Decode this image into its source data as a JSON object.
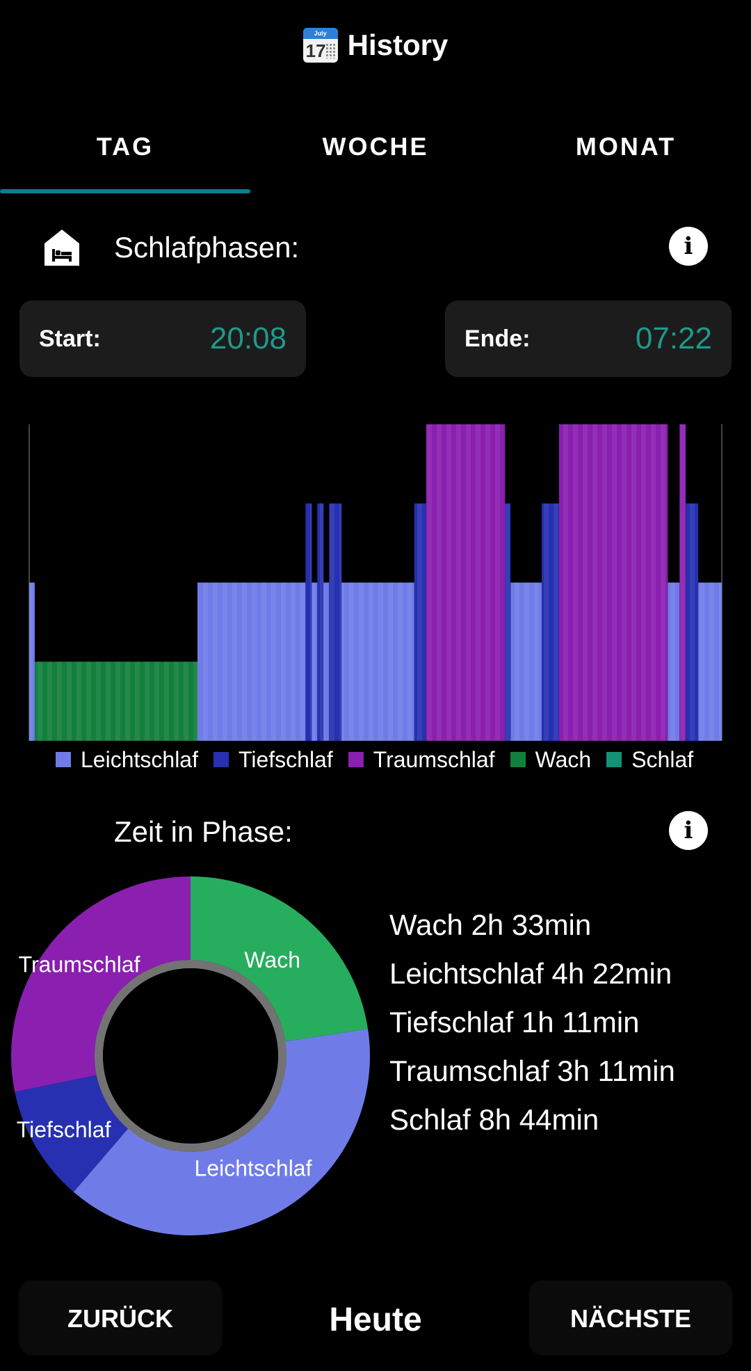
{
  "header": {
    "title": "History",
    "icon": "calendar-icon",
    "calendar_month": "July",
    "calendar_day": "17"
  },
  "tabs": [
    {
      "label": "TAG",
      "active": true
    },
    {
      "label": "WOCHE",
      "active": false
    },
    {
      "label": "MONAT",
      "active": false
    }
  ],
  "phases_section": {
    "title": "Schlafphasen:",
    "icon": "bed-icon",
    "info_icon": "info-icon"
  },
  "start": {
    "label": "Start:",
    "value": "20:08"
  },
  "end": {
    "label": "Ende:",
    "value": "07:22"
  },
  "colors": {
    "leicht": "#6f7ce8",
    "tief": "#2630b0",
    "traum": "#8a1fb0",
    "wach": "#137f3d",
    "schlaf": "#139275",
    "accent": "#1e9a8c",
    "tab_indicator": "#0e7d92"
  },
  "legend": [
    "Leichtschlaf",
    "Tiefschlaf",
    "Traumschlaf",
    "Wach",
    "Schlaf"
  ],
  "chart_data": [
    {
      "type": "bar",
      "levels": {
        "Traumschlaf": 4,
        "Tiefschlaf": 3,
        "Leichtschlaf": 2,
        "Wach": 1
      },
      "segments": [
        {
          "phase": "Leichtschlaf",
          "start": 0.0,
          "end": 0.008
        },
        {
          "phase": "Wach",
          "start": 0.008,
          "end": 0.243
        },
        {
          "phase": "Leichtschlaf",
          "start": 0.243,
          "end": 0.399
        },
        {
          "phase": "Tiefschlaf",
          "start": 0.399,
          "end": 0.408
        },
        {
          "phase": "Leichtschlaf",
          "start": 0.408,
          "end": 0.416
        },
        {
          "phase": "Tiefschlaf",
          "start": 0.416,
          "end": 0.425
        },
        {
          "phase": "Leichtschlaf",
          "start": 0.425,
          "end": 0.433
        },
        {
          "phase": "Tiefschlaf",
          "start": 0.433,
          "end": 0.451
        },
        {
          "phase": "Leichtschlaf",
          "start": 0.451,
          "end": 0.556
        },
        {
          "phase": "Tiefschlaf",
          "start": 0.556,
          "end": 0.573
        },
        {
          "phase": "Traumschlaf",
          "start": 0.573,
          "end": 0.687
        },
        {
          "phase": "Tiefschlaf",
          "start": 0.687,
          "end": 0.695
        },
        {
          "phase": "Leichtschlaf",
          "start": 0.695,
          "end": 0.74
        },
        {
          "phase": "Tiefschlaf",
          "start": 0.74,
          "end": 0.765
        },
        {
          "phase": "Traumschlaf",
          "start": 0.765,
          "end": 0.922
        },
        {
          "phase": "Leichtschlaf",
          "start": 0.922,
          "end": 0.939
        },
        {
          "phase": "Traumschlaf",
          "start": 0.939,
          "end": 0.948
        },
        {
          "phase": "Tiefschlaf",
          "start": 0.948,
          "end": 0.966
        },
        {
          "phase": "Leichtschlaf",
          "start": 0.966,
          "end": 1.0
        }
      ]
    },
    {
      "type": "pie",
      "title": "Zeit in Phase:",
      "slices": [
        {
          "label": "Wach",
          "value": 153
        },
        {
          "label": "Leichtschlaf",
          "value": 262
        },
        {
          "label": "Tiefschlaf",
          "value": 71
        },
        {
          "label": "Traumschlaf",
          "value": 191
        }
      ]
    }
  ],
  "time_section": {
    "title": "Zeit in Phase:",
    "info_icon": "info-icon"
  },
  "stats": [
    "Wach 2h 33min",
    "Leichtschlaf 4h 22min",
    "Tiefschlaf 1h 11min",
    "Traumschlaf 3h 11min",
    "Schlaf 8h 44min"
  ],
  "footer": {
    "back": "ZURÜCK",
    "today": "Heute",
    "next": "NÄCHSTE"
  }
}
